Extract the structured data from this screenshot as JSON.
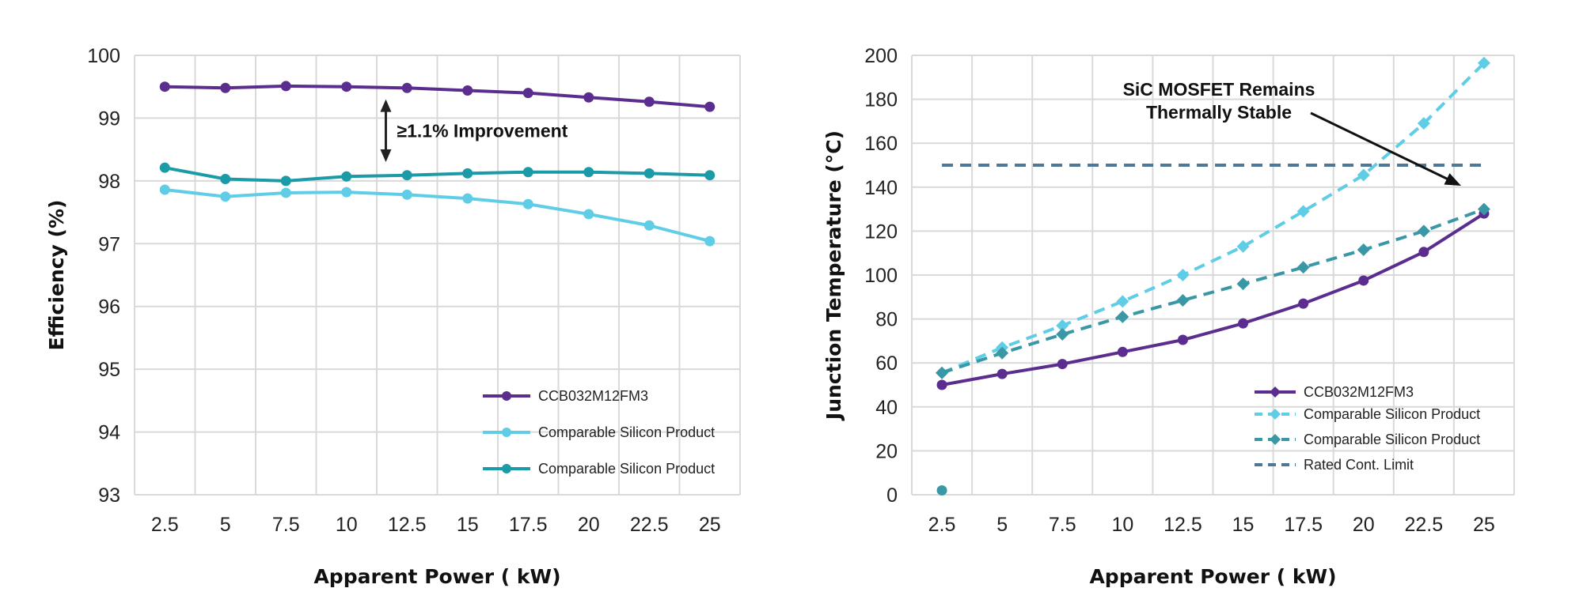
{
  "chart_data": [
    {
      "type": "line",
      "xlabel": "Apparent Power ( kW)",
      "ylabel": "Efficiency (%)",
      "categories": [
        "2.5",
        "5",
        "7.5",
        "10",
        "12.5",
        "15",
        "17.5",
        "20",
        "22.5",
        "25"
      ],
      "ylim": [
        93,
        100
      ],
      "yticks": [
        93,
        94,
        95,
        96,
        97,
        98,
        99,
        100
      ],
      "grid": true,
      "legend": "bottom-right",
      "series": [
        {
          "name": "CCB032M12FM3",
          "color": "#5b2d8e",
          "dash": false,
          "marker": "circle",
          "values": [
            99.5,
            99.48,
            99.51,
            99.5,
            99.48,
            99.44,
            99.4,
            99.33,
            99.26,
            99.18
          ]
        },
        {
          "name": "Comparable Silicon Product",
          "color": "#5fcde6",
          "dash": false,
          "marker": "circle",
          "values": [
            97.86,
            97.75,
            97.81,
            97.82,
            97.78,
            97.72,
            97.63,
            97.47,
            97.29,
            97.04
          ]
        },
        {
          "name": "Comparable Silicon Product",
          "color": "#1b9aa8",
          "dash": false,
          "marker": "circle",
          "values": [
            98.21,
            98.03,
            98.0,
            98.07,
            98.09,
            98.12,
            98.14,
            98.14,
            98.12,
            98.09
          ]
        }
      ],
      "annotations": [
        {
          "text": "≥1.1% Improvement",
          "from": 99.3,
          "to": 98.3
        }
      ]
    },
    {
      "type": "line",
      "xlabel": "Apparent Power ( kW)",
      "ylabel": "Junction Temperature (°C)",
      "categories": [
        "2.5",
        "5",
        "7.5",
        "10",
        "12.5",
        "15",
        "17.5",
        "20",
        "22.5",
        "25"
      ],
      "ylim": [
        0,
        200
      ],
      "yticks": [
        0,
        20,
        40,
        60,
        80,
        100,
        120,
        140,
        160,
        180,
        200
      ],
      "grid": true,
      "legend": "bottom-right",
      "series": [
        {
          "name": "CCB032M12FM3",
          "color": "#5b2d8e",
          "dash": false,
          "marker": "circle",
          "legend_marker": "diamond",
          "values": [
            50,
            55,
            59.5,
            65,
            70.5,
            78,
            87,
            97.5,
            110.5,
            128
          ]
        },
        {
          "name": "Comparable Silicon Product",
          "color": "#5fcde6",
          "dash": true,
          "marker": "diamond",
          "values": [
            55.5,
            67,
            77,
            88,
            100,
            113,
            129,
            145.5,
            169,
            196.5
          ]
        },
        {
          "name": "Comparable Silicon Product",
          "color": "#3a98a6",
          "dash": true,
          "marker": "diamond",
          "values": [
            55.5,
            64.5,
            73,
            81,
            88.5,
            96,
            103.5,
            111.5,
            120,
            130
          ]
        },
        {
          "name": "Rated Cont. Limit",
          "color": "#4f7896",
          "dash": true,
          "marker": "none",
          "values": [
            150,
            150,
            150,
            150,
            150,
            150,
            150,
            150,
            150,
            150
          ]
        }
      ],
      "stray_points": [
        {
          "x": "2.5",
          "y": 2,
          "color": "#3a98a6"
        }
      ],
      "annotations": [
        {
          "text_lines": [
            "SiC MOSFET Remains",
            "Thermally Stable"
          ]
        }
      ]
    }
  ]
}
